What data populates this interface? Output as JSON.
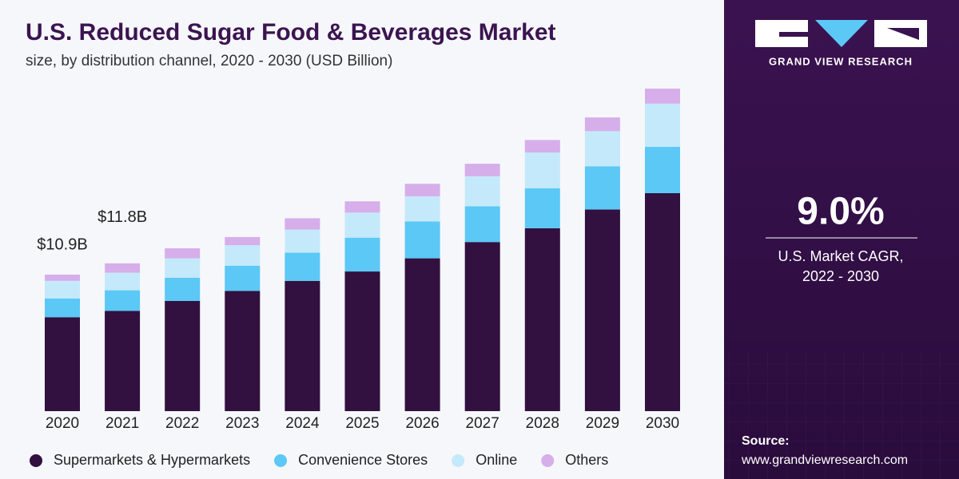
{
  "chart_data": {
    "type": "stacked_bar",
    "title": "U.S. Reduced Sugar Food & Beverages Market",
    "subtitle": "size, by distribution channel, 2020 - 2030 (USD Billion)",
    "categories": [
      "2020",
      "2021",
      "2022",
      "2023",
      "2024",
      "2025",
      "2026",
      "2027",
      "2028",
      "2029",
      "2030"
    ],
    "series": [
      {
        "name": "Supermarkets & Hypermarkets",
        "color": "#32103f",
        "values": [
          7.5,
          8.0,
          8.8,
          9.6,
          10.4,
          11.15,
          12.2,
          13.5,
          14.6,
          16.1,
          17.4
        ]
      },
      {
        "name": "Convenience Stores",
        "color": "#5bc8f5",
        "values": [
          1.5,
          1.65,
          1.85,
          2.0,
          2.25,
          2.7,
          2.95,
          2.85,
          3.2,
          3.45,
          3.7
        ]
      },
      {
        "name": "Online",
        "color": "#c4e9fa",
        "values": [
          1.4,
          1.4,
          1.55,
          1.65,
          1.85,
          2.0,
          2.0,
          2.4,
          2.85,
          2.8,
          3.45
        ]
      },
      {
        "name": "Others",
        "color": "#d6aeea",
        "values": [
          0.5,
          0.75,
          0.8,
          0.65,
          0.9,
          0.9,
          1.0,
          1.0,
          1.0,
          1.1,
          1.2
        ]
      }
    ],
    "annotations": [
      {
        "category": "2020",
        "value": 10.9,
        "label": "$10.9B"
      },
      {
        "category": "2021",
        "value": 11.8,
        "label": "$11.8B"
      }
    ],
    "legend": "bottom"
  },
  "side_panel": {
    "brand": "GRAND VIEW RESEARCH",
    "cagr": "9.0%",
    "cagr_label_1": "U.S. Market CAGR,",
    "cagr_label_2": "2022 - 2030",
    "source_title": "Source:",
    "source_url": "www.grandviewresearch.com"
  }
}
